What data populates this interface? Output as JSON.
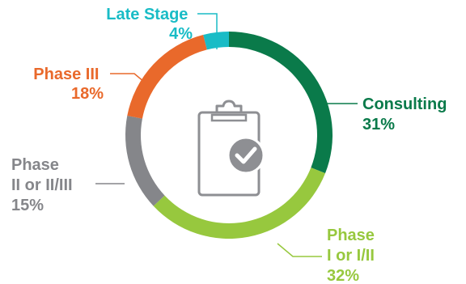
{
  "chart_data": {
    "type": "pie",
    "variant": "donut",
    "title": "",
    "slices": [
      {
        "name_lines": [
          "Consulting"
        ],
        "value": 31,
        "value_label": "31%",
        "color": "#0a7a4a"
      },
      {
        "name_lines": [
          "Phase",
          "I or I/II"
        ],
        "value": 32,
        "value_label": "32%",
        "color": "#97c83e"
      },
      {
        "name_lines": [
          "Phase",
          "II or II/III"
        ],
        "value": 15,
        "value_label": "15%",
        "color": "#85868a"
      },
      {
        "name_lines": [
          "Phase III"
        ],
        "value": 18,
        "value_label": "18%",
        "color": "#e9692b"
      },
      {
        "name_lines": [
          "Late Stage"
        ],
        "value": 4,
        "value_label": "4%",
        "color": "#19bcc6"
      }
    ],
    "start_angle_deg": 0,
    "direction": "clockwise",
    "center_icon": "clipboard-check-icon",
    "center_icon_color": "#8e8f93"
  }
}
